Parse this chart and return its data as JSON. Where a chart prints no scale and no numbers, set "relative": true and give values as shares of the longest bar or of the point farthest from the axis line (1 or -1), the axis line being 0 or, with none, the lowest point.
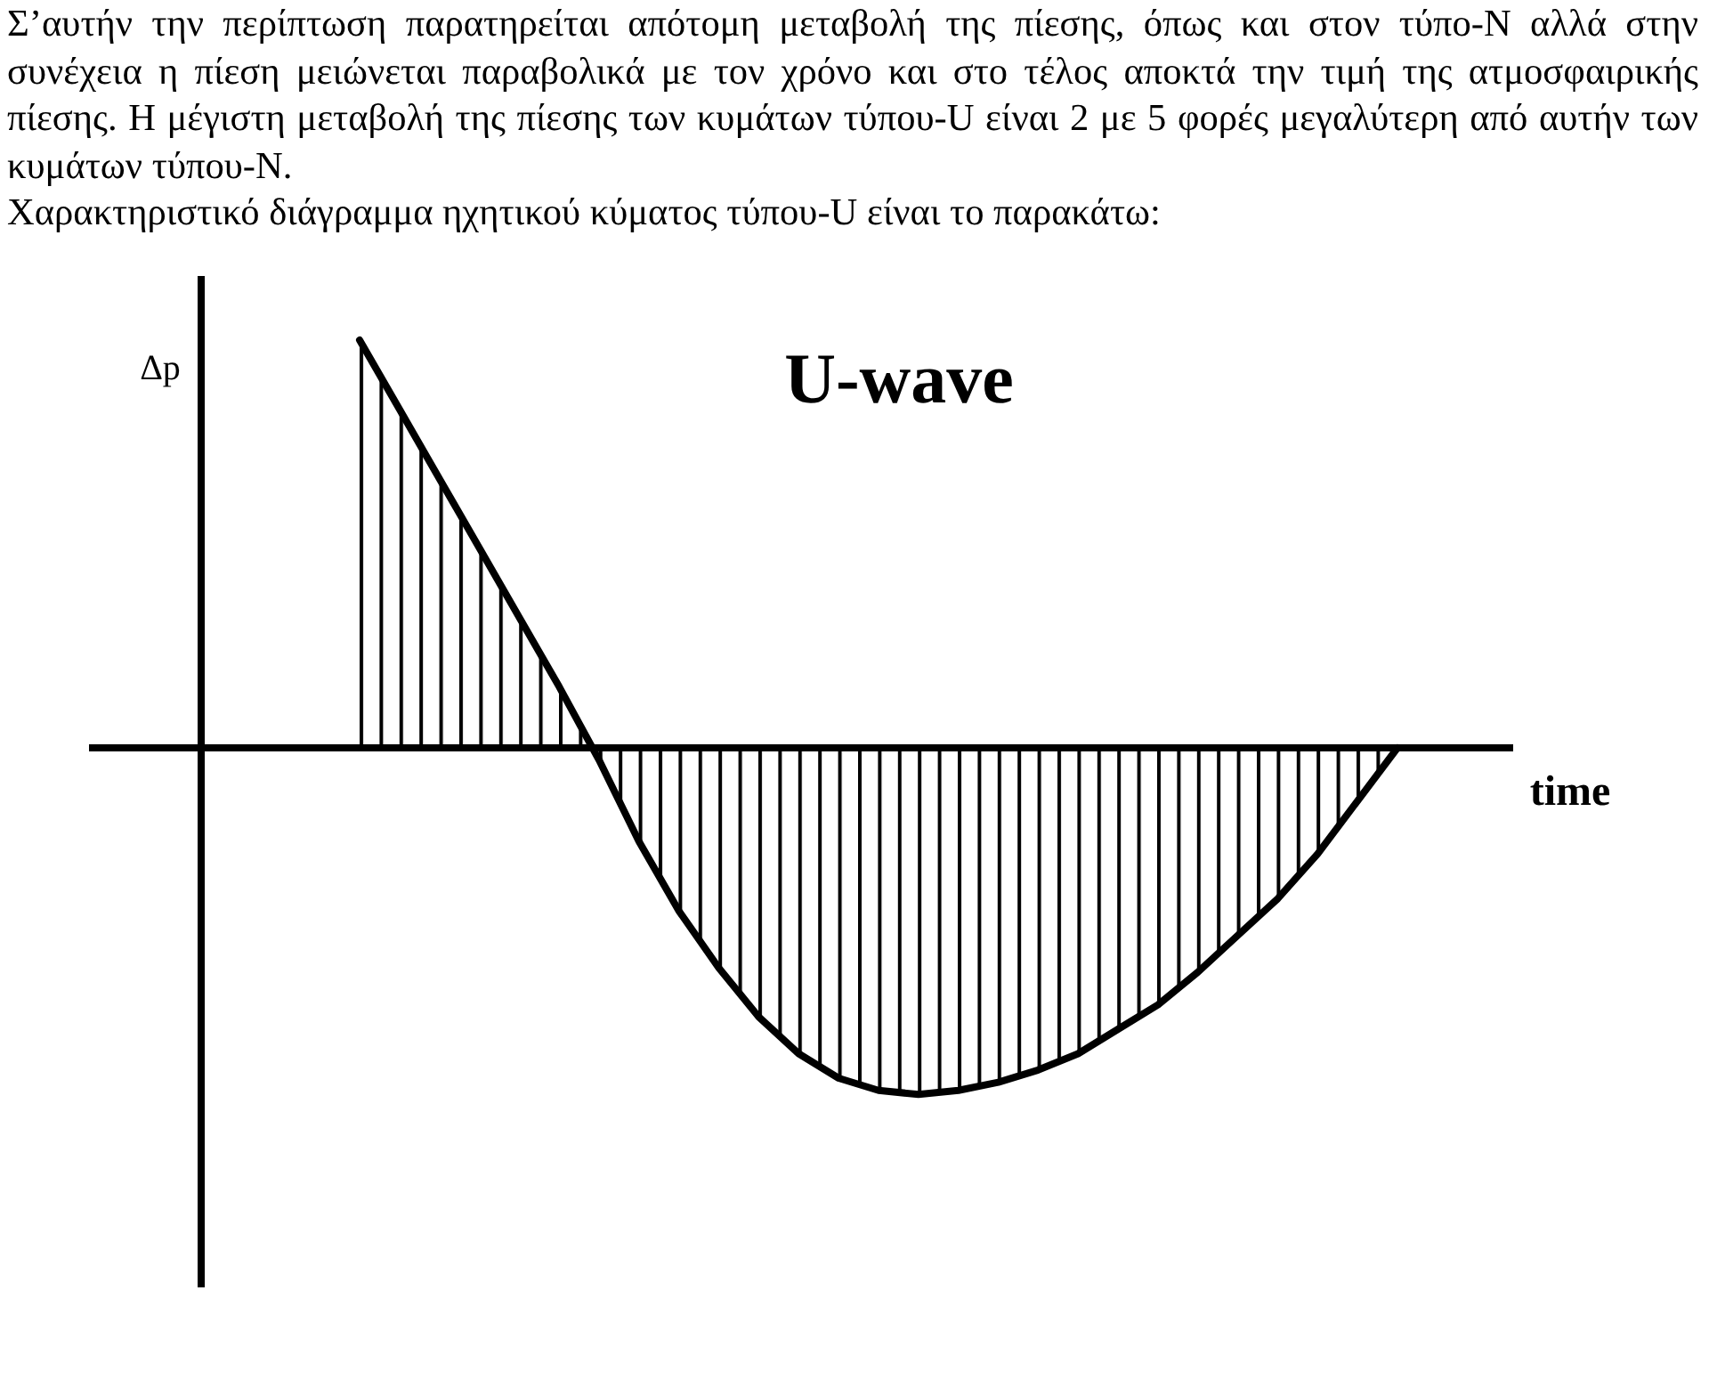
{
  "chart_data": {
    "type": "area",
    "relative": true,
    "title": "U-wave",
    "xlabel": "time",
    "ylabel": "Δp",
    "annotations": [
      "Σ’αυτήν την περίπτωση παρατηρείται απότομη μεταβολή της πίεσης, όπως και στον τύπο-Ν αλλά στην συνέχεια η πίεση μειώνεται παραβολικά με τον χρόνο και στο τέλος αποκτά την τιμή της ατμοσφαιρικής πίεσης. Η μέγιστη μεταβολή της πίεσης των κυμάτων τύπου-U είναι 2 με 5 φορές μεγαλύτερη από αυτήν των κυμάτων τύπου-Ν.",
      "Χαρακτηριστικό διάγραμμα ηχητικού κύματος τύπου-U είναι το παρακάτω:"
    ],
    "categories": [
      null,
      null,
      null,
      null,
      null,
      null,
      null,
      null,
      null,
      null,
      null,
      null,
      null,
      null,
      null,
      null,
      null,
      null,
      null,
      null,
      null,
      null,
      null,
      null,
      null,
      null,
      null
    ],
    "series": [
      {
        "color": "#000000",
        "values": [
          1,
          0.83,
          0.66,
          0.49,
          0.32,
          0.15,
          -0.03,
          -0.23,
          -0.4,
          -0.54,
          -0.66,
          -0.75,
          -0.81,
          -0.84,
          -0.85,
          -0.84,
          -0.82,
          -0.79,
          -0.75,
          -0.69,
          -0.63,
          -0.55,
          -0.46,
          -0.37,
          -0.26,
          -0.13,
          0
        ]
      }
    ]
  }
}
